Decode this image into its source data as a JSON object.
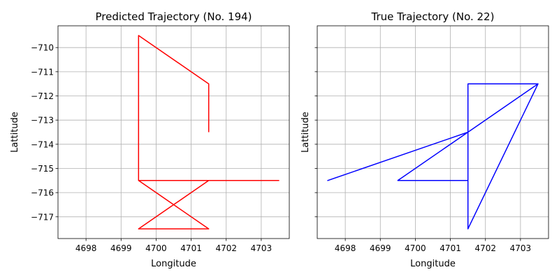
{
  "chart_data": [
    {
      "type": "line",
      "title": "Predicted Trajectory (No. 194)",
      "xlabel": "Longitude",
      "ylabel": "Lattitude",
      "xlim": [
        4697.2,
        4703.8
      ],
      "ylim": [
        -717.9,
        -709.1
      ],
      "xticks": [
        4698,
        4699,
        4700,
        4701,
        4702,
        4703
      ],
      "yticks": [
        -710,
        -711,
        -712,
        -713,
        -714,
        -715,
        -716,
        -717
      ],
      "ytick_labels_visible": true,
      "grid": true,
      "color": "#ff0000",
      "x": [
        4701.5,
        4701.5,
        4699.5,
        4699.5,
        4703.5,
        4699.5,
        4701.5,
        4701.5,
        4699.5,
        4701.5,
        4699.5
      ],
      "y": [
        -713.5,
        -711.5,
        -709.5,
        -715.5,
        -715.5,
        -715.5,
        -717.5,
        -717.5,
        -717.5,
        -715.5,
        -715.5
      ]
    },
    {
      "type": "line",
      "title": "True Trajectory (No. 22)",
      "xlabel": "Longitude",
      "ylabel": "Lattitude",
      "xlim": [
        4697.2,
        4703.8
      ],
      "ylim": [
        -717.9,
        -709.1
      ],
      "xticks": [
        4698,
        4699,
        4700,
        4701,
        4702,
        4703
      ],
      "yticks": [
        -710,
        -711,
        -712,
        -713,
        -714,
        -715,
        -716,
        -717
      ],
      "ytick_labels_visible": false,
      "grid": true,
      "color": "#0000ff",
      "x": [
        4701.5,
        4701.5,
        4699.5,
        4701.5,
        4697.5,
        4701.5,
        4703.5,
        4701.5,
        4701.5,
        4703.5,
        4701.5
      ],
      "y": [
        -715.5,
        -715.5,
        -715.5,
        -713.5,
        -715.5,
        -713.5,
        -711.5,
        -711.5,
        -717.5,
        -711.5,
        -717.5
      ]
    }
  ]
}
